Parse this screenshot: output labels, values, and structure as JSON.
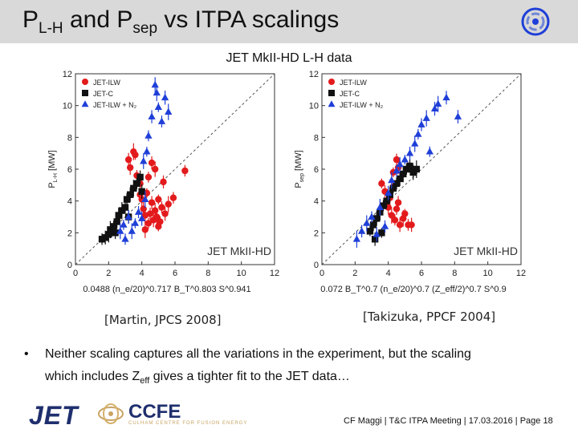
{
  "header": {
    "title_p": "P",
    "title_sub1": "L-H",
    "title_mid": " and P",
    "title_sub2": "sep",
    "title_end": " vs ITPA scalings"
  },
  "subtitle": "JET MkІI-HD L-H data",
  "colors": {
    "red": "#e31a1c",
    "black": "#111111",
    "blue": "#1f3fd8",
    "titlebar": "#d9d9d9"
  },
  "chart_data": [
    {
      "type": "scatter",
      "title": "",
      "xlabel": "0.0488 (n_e/20)^0.717 B_T^0.803 S^0.941",
      "ylabel": "P_L-H [MW]",
      "ylabel_main": "P",
      "ylabel_sub": "L-H",
      "ylabel_unit": " [MW]",
      "xlabel_prefix": "0.0488 (n",
      "xlabel_suffix": ")",
      "xlim": [
        0,
        12
      ],
      "ylim": [
        0,
        12
      ],
      "x_ticks": [
        "0",
        "2",
        "4",
        "6",
        "8",
        "10",
        "12"
      ],
      "y_ticks": [
        "0",
        "2",
        "4",
        "6",
        "8",
        "10",
        "12"
      ],
      "watermark": "JET MkII-HD",
      "legend": [
        "JET-ILW",
        "JET-C",
        "JET-ILW + N₂"
      ],
      "series": [
        {
          "name": "JET-ILW",
          "points": [
            [
              3.2,
              6.6
            ],
            [
              3.3,
              6.1
            ],
            [
              3.5,
              7.1
            ],
            [
              3.6,
              6.9
            ],
            [
              3.7,
              5.6
            ],
            [
              3.9,
              5.1
            ],
            [
              4.0,
              4.1
            ],
            [
              4.1,
              3.5
            ],
            [
              4.2,
              3.1
            ],
            [
              4.3,
              4.5
            ],
            [
              4.4,
              2.6
            ],
            [
              4.5,
              3.2
            ],
            [
              4.6,
              3.9
            ],
            [
              4.7,
              2.8
            ],
            [
              4.8,
              3.4
            ],
            [
              4.9,
              3.0
            ],
            [
              5.0,
              4.1
            ],
            [
              5.1,
              2.7
            ],
            [
              5.2,
              3.6
            ],
            [
              5.4,
              3.2
            ],
            [
              5.6,
              3.8
            ],
            [
              5.9,
              4.2
            ],
            [
              6.6,
              5.9
            ],
            [
              4.6,
              6.4
            ],
            [
              4.4,
              5.5
            ],
            [
              3.9,
              4.4
            ],
            [
              5.0,
              2.4
            ],
            [
              4.2,
              2.2
            ],
            [
              5.3,
              5.2
            ],
            [
              4.8,
              6.0
            ]
          ]
        },
        {
          "name": "JET-C",
          "points": [
            [
              1.6,
              1.6
            ],
            [
              1.8,
              1.7
            ],
            [
              2.0,
              1.9
            ],
            [
              2.1,
              2.2
            ],
            [
              2.3,
              2.4
            ],
            [
              2.5,
              2.7
            ],
            [
              2.6,
              3.1
            ],
            [
              2.8,
              3.4
            ],
            [
              3.0,
              3.6
            ],
            [
              3.1,
              4.1
            ],
            [
              3.3,
              4.4
            ],
            [
              3.5,
              4.8
            ],
            [
              3.7,
              5.1
            ],
            [
              3.9,
              5.5
            ],
            [
              4.0,
              4.6
            ],
            [
              2.4,
              2.0
            ],
            [
              3.2,
              3.0
            ]
          ]
        },
        {
          "name": "JET-ILW + N₂",
          "points": [
            [
              2.7,
              2.1
            ],
            [
              2.9,
              2.5
            ],
            [
              3.0,
              1.6
            ],
            [
              3.2,
              3.0
            ],
            [
              3.4,
              2.1
            ],
            [
              3.6,
              2.6
            ],
            [
              3.8,
              3.3
            ],
            [
              4.0,
              2.9
            ],
            [
              4.2,
              4.1
            ],
            [
              4.1,
              6.5
            ],
            [
              4.3,
              7.1
            ],
            [
              4.4,
              8.1
            ],
            [
              4.6,
              9.3
            ],
            [
              5.0,
              9.9
            ],
            [
              5.6,
              9.6
            ],
            [
              5.2,
              9.0
            ],
            [
              5.4,
              10.5
            ],
            [
              4.8,
              11.3
            ],
            [
              4.9,
              10.8
            ]
          ]
        }
      ]
    },
    {
      "type": "scatter",
      "title": "",
      "xlabel": "0.072 B_T^0.7 (n_e/20)^0.7 (Z_eff/2)^0.7 S^0.9",
      "ylabel": "P_sep [MW]",
      "ylabel_main": "P",
      "ylabel_sub": "sep",
      "ylabel_unit": " [MW]",
      "xlabel_prefix": "0.072 B",
      "xlabel_suffix": "",
      "xlim": [
        0,
        12
      ],
      "ylim": [
        0,
        12
      ],
      "x_ticks": [
        "0",
        "2",
        "4",
        "6",
        "8",
        "10",
        "12"
      ],
      "y_ticks": [
        "0",
        "2",
        "4",
        "6",
        "8",
        "10",
        "12"
      ],
      "watermark": "JET MkII-HD",
      "legend": [
        "JET-ILW",
        "JET-C",
        "JET-ILW + N₂"
      ],
      "series": [
        {
          "name": "JET-ILW",
          "points": [
            [
              3.6,
              5.1
            ],
            [
              3.8,
              4.6
            ],
            [
              3.9,
              4.0
            ],
            [
              4.0,
              3.6
            ],
            [
              4.1,
              4.2
            ],
            [
              4.2,
              3.1
            ],
            [
              4.3,
              4.9
            ],
            [
              4.4,
              2.8
            ],
            [
              4.5,
              3.5
            ],
            [
              4.6,
              3.9
            ],
            [
              4.7,
              2.5
            ],
            [
              4.9,
              2.9
            ],
            [
              5.0,
              3.2
            ],
            [
              5.2,
              2.5
            ],
            [
              5.4,
              2.5
            ],
            [
              4.5,
              6.6
            ],
            [
              4.3,
              5.8
            ],
            [
              4.6,
              6.1
            ]
          ]
        },
        {
          "name": "JET-C",
          "points": [
            [
              2.9,
              2.1
            ],
            [
              3.1,
              2.5
            ],
            [
              3.3,
              2.9
            ],
            [
              3.5,
              3.3
            ],
            [
              3.7,
              3.7
            ],
            [
              3.9,
              4.0
            ],
            [
              4.1,
              4.4
            ],
            [
              4.3,
              4.8
            ],
            [
              4.5,
              5.1
            ],
            [
              4.7,
              5.4
            ],
            [
              4.9,
              5.7
            ],
            [
              5.1,
              6.0
            ],
            [
              5.3,
              6.2
            ],
            [
              5.5,
              5.8
            ],
            [
              5.7,
              6.0
            ],
            [
              3.2,
              1.6
            ],
            [
              3.6,
              2.0
            ]
          ]
        },
        {
          "name": "JET-ILW + N₂",
          "points": [
            [
              2.1,
              1.6
            ],
            [
              2.4,
              2.1
            ],
            [
              2.7,
              2.6
            ],
            [
              3.0,
              3.0
            ],
            [
              3.3,
              1.9
            ],
            [
              3.5,
              3.6
            ],
            [
              3.8,
              2.4
            ],
            [
              4.0,
              4.5
            ],
            [
              4.2,
              5.3
            ],
            [
              4.5,
              5.9
            ],
            [
              4.7,
              6.3
            ],
            [
              5.0,
              6.6
            ],
            [
              5.3,
              7.0
            ],
            [
              5.6,
              7.6
            ],
            [
              5.8,
              8.2
            ],
            [
              6.0,
              8.8
            ],
            [
              6.3,
              9.2
            ],
            [
              6.8,
              9.8
            ],
            [
              7.0,
              10.1
            ],
            [
              7.5,
              10.5
            ],
            [
              8.2,
              9.3
            ],
            [
              6.5,
              7.1
            ]
          ]
        }
      ]
    }
  ],
  "citations": [
    "[Martin, JPCS 2008]",
    "[Takizuka, PPCF 2004]"
  ],
  "bullet": {
    "dot": "•",
    "line1": "Neither scaling captures all the variations in the experiment, but the scaling",
    "line2_a": "which includes Z",
    "line2_sub": "eff",
    "line2_b": " gives a tighter fit to the JET data…"
  },
  "logos": {
    "jet": "JET",
    "ccfe": "CCFE",
    "ccfe_sub": "CULHAM CENTRE FOR FUSION ENERGY"
  },
  "footer": "CF Maggi | T&C ITPA Meeting | 17.03.2016 | Page 18"
}
